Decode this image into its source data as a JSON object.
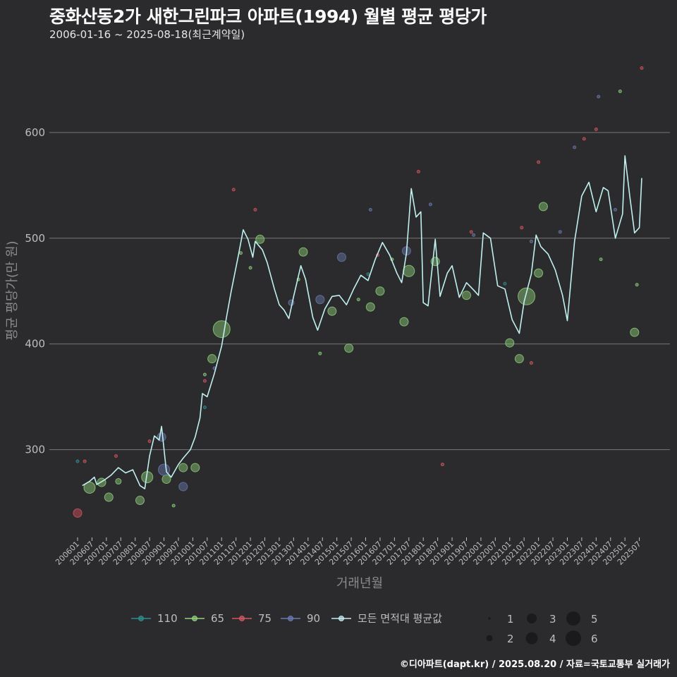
{
  "header": {
    "title": "중화산동2가 새한그린파크 아파트(1994) 월별 평균 평당가",
    "subtitle": "2006-01-16 ~ 2025-08-18(최근계약일)"
  },
  "caption": "©디아파트(dapt.kr) / 2025.08.20 / 자료=국토교통부 실거래가",
  "colors": {
    "background": "#2b2b2d",
    "grid": "#777777",
    "s110": "#2f8f8f",
    "s65": "#8fd27a",
    "s75": "#d8555f",
    "s90": "#6a7ab0",
    "avg": "#bff0f0"
  },
  "chart_data": {
    "type": "line",
    "title": "중화산동2가 새한그린파크 아파트(1994) 월별 평균 평당가",
    "subtitle": "2006-01-16 ~ 2025-08-18(최근계약일)",
    "xlabel": "거래년월",
    "ylabel": "평균 평당가(만 원)",
    "ylim": [
      217,
      672
    ],
    "yticks": [
      300,
      400,
      500,
      600
    ],
    "grid": true,
    "xticks": [
      "200601",
      "200607",
      "200701",
      "200707",
      "200801",
      "200807",
      "200901",
      "200907",
      "201001",
      "201007",
      "201101",
      "201107",
      "201201",
      "201207",
      "201301",
      "201307",
      "201401",
      "201407",
      "201501",
      "201507",
      "201601",
      "201607",
      "201701",
      "201707",
      "201801",
      "201807",
      "201901",
      "201907",
      "202001",
      "202007",
      "202101",
      "202107",
      "202201",
      "202207",
      "202301",
      "202307",
      "202401",
      "202407",
      "202501",
      "202507"
    ],
    "legend": {
      "position": "bottom",
      "series": [
        "110",
        "65",
        "75",
        "90",
        "모든 면적대 평균값"
      ],
      "size_title": "",
      "sizes": [
        1,
        2,
        3,
        4,
        5,
        6
      ]
    },
    "average_line": {
      "name": "모든 면적대 평균값",
      "points": [
        [
          "2006-03",
          266
        ],
        [
          "2006-06",
          270
        ],
        [
          "2006-08",
          274
        ],
        [
          "2006-09",
          267
        ],
        [
          "2006-12",
          271
        ],
        [
          "2007-03",
          276
        ],
        [
          "2007-06",
          283
        ],
        [
          "2007-09",
          278
        ],
        [
          "2007-12",
          281
        ],
        [
          "2008-03",
          266
        ],
        [
          "2008-05",
          263
        ],
        [
          "2008-07",
          294
        ],
        [
          "2008-09",
          313
        ],
        [
          "2008-11",
          309
        ],
        [
          "2008-12",
          322
        ],
        [
          "2009-02",
          279
        ],
        [
          "2009-04",
          274
        ],
        [
          "2009-07",
          286
        ],
        [
          "2009-09",
          292
        ],
        [
          "2009-12",
          300
        ],
        [
          "2010-02",
          312
        ],
        [
          "2010-04",
          330
        ],
        [
          "2010-05",
          353
        ],
        [
          "2010-07",
          350
        ],
        [
          "2010-10",
          372
        ],
        [
          "2011-01",
          398
        ],
        [
          "2011-03",
          425
        ],
        [
          "2011-05",
          450
        ],
        [
          "2011-08",
          484
        ],
        [
          "2011-10",
          508
        ],
        [
          "2011-12",
          499
        ],
        [
          "2012-02",
          482
        ],
        [
          "2012-03",
          497
        ],
        [
          "2012-06",
          489
        ],
        [
          "2012-08",
          477
        ],
        [
          "2012-11",
          452
        ],
        [
          "2013-01",
          437
        ],
        [
          "2013-03",
          432
        ],
        [
          "2013-05",
          424
        ],
        [
          "2013-07",
          445
        ],
        [
          "2013-10",
          474
        ],
        [
          "2013-12",
          461
        ],
        [
          "2014-03",
          425
        ],
        [
          "2014-05",
          413
        ],
        [
          "2014-08",
          433
        ],
        [
          "2014-11",
          445
        ],
        [
          "2015-02",
          446
        ],
        [
          "2015-05",
          437
        ],
        [
          "2015-08",
          452
        ],
        [
          "2015-11",
          465
        ],
        [
          "2016-02",
          460
        ],
        [
          "2016-05",
          480
        ],
        [
          "2016-08",
          496
        ],
        [
          "2016-11",
          484
        ],
        [
          "2017-02",
          467
        ],
        [
          "2017-04",
          458
        ],
        [
          "2017-06",
          486
        ],
        [
          "2017-08",
          547
        ],
        [
          "2017-10",
          520
        ],
        [
          "2017-12",
          525
        ],
        [
          "2018-01",
          439
        ],
        [
          "2018-03",
          436
        ],
        [
          "2018-06",
          499
        ],
        [
          "2018-08",
          445
        ],
        [
          "2018-11",
          467
        ],
        [
          "2019-01",
          474
        ],
        [
          "2019-04",
          444
        ],
        [
          "2019-07",
          458
        ],
        [
          "2019-10",
          451
        ],
        [
          "2019-12",
          446
        ],
        [
          "2020-02",
          505
        ],
        [
          "2020-05",
          500
        ],
        [
          "2020-08",
          455
        ],
        [
          "2020-11",
          452
        ],
        [
          "2021-02",
          423
        ],
        [
          "2021-05",
          410
        ],
        [
          "2021-07",
          440
        ],
        [
          "2021-10",
          466
        ],
        [
          "2021-12",
          503
        ],
        [
          "2022-02",
          492
        ],
        [
          "2022-05",
          485
        ],
        [
          "2022-08",
          470
        ],
        [
          "2022-11",
          446
        ],
        [
          "2023-01",
          422
        ],
        [
          "2023-04",
          497
        ],
        [
          "2023-07",
          540
        ],
        [
          "2023-10",
          553
        ],
        [
          "2024-01",
          525
        ],
        [
          "2024-04",
          548
        ],
        [
          "2024-06",
          545
        ],
        [
          "2024-09",
          500
        ],
        [
          "2024-12",
          523
        ],
        [
          "2025-01",
          578
        ],
        [
          "2025-03",
          540
        ],
        [
          "2025-05",
          505
        ],
        [
          "2025-07",
          510
        ],
        [
          "2025-08",
          557
        ]
      ]
    },
    "scatter_series": [
      {
        "name": "110",
        "points": [
          [
            "2006-01",
            289,
            1
          ],
          [
            "2010-06",
            340,
            1
          ],
          [
            "2016-02",
            466,
            1
          ],
          [
            "2020-11",
            457,
            1
          ]
        ]
      },
      {
        "name": "65",
        "points": [
          [
            "2006-06",
            264,
            4
          ],
          [
            "2006-11",
            269,
            3
          ],
          [
            "2007-02",
            255,
            3
          ],
          [
            "2007-06",
            270,
            2
          ],
          [
            "2008-03",
            252,
            3
          ],
          [
            "2008-06",
            274,
            4
          ],
          [
            "2009-02",
            272,
            3
          ],
          [
            "2009-05",
            247,
            1
          ],
          [
            "2009-09",
            283,
            3
          ],
          [
            "2010-02",
            283,
            3
          ],
          [
            "2010-06",
            371,
            1
          ],
          [
            "2010-09",
            386,
            3
          ],
          [
            "2011-01",
            414,
            6
          ],
          [
            "2011-09",
            486,
            1
          ],
          [
            "2012-01",
            472,
            1
          ],
          [
            "2012-05",
            499,
            3
          ],
          [
            "2013-09",
            461,
            1
          ],
          [
            "2013-11",
            487,
            3
          ],
          [
            "2014-06",
            391,
            1
          ],
          [
            "2014-11",
            431,
            3
          ],
          [
            "2015-06",
            396,
            3
          ],
          [
            "2015-10",
            442,
            1
          ],
          [
            "2016-03",
            435,
            3
          ],
          [
            "2016-07",
            450,
            3
          ],
          [
            "2016-12",
            480,
            1
          ],
          [
            "2017-05",
            421,
            3
          ],
          [
            "2017-07",
            469,
            4
          ],
          [
            "2018-06",
            478,
            3
          ],
          [
            "2019-07",
            446,
            3
          ],
          [
            "2021-01",
            401,
            3
          ],
          [
            "2021-05",
            386,
            3
          ],
          [
            "2021-08",
            445,
            6
          ],
          [
            "2022-03",
            530,
            3
          ],
          [
            "2022-01",
            467,
            3
          ],
          [
            "2024-03",
            480,
            1
          ],
          [
            "2024-11",
            639,
            1
          ],
          [
            "2025-05",
            411,
            3
          ],
          [
            "2025-06",
            456,
            1
          ]
        ]
      },
      {
        "name": "75",
        "points": [
          [
            "2006-01",
            240,
            3
          ],
          [
            "2006-04",
            289,
            1
          ],
          [
            "2007-05",
            294,
            1
          ],
          [
            "2008-07",
            308,
            1
          ],
          [
            "2010-06",
            365,
            1
          ],
          [
            "2011-06",
            546,
            1
          ],
          [
            "2012-03",
            527,
            1
          ],
          [
            "2016-06",
            484,
            1
          ],
          [
            "2017-11",
            563,
            1
          ],
          [
            "2018-09",
            286,
            1
          ],
          [
            "2019-09",
            506,
            1
          ],
          [
            "2021-06",
            510,
            1
          ],
          [
            "2021-10",
            382,
            1
          ],
          [
            "2022-01",
            572,
            1
          ],
          [
            "2023-08",
            594,
            1
          ],
          [
            "2024-01",
            603,
            1
          ],
          [
            "2025-08",
            661,
            1
          ]
        ]
      },
      {
        "name": "90",
        "points": [
          [
            "2008-12",
            312,
            3
          ],
          [
            "2009-01",
            281,
            4
          ],
          [
            "2009-09",
            265,
            3
          ],
          [
            "2010-10",
            377,
            1
          ],
          [
            "2013-06",
            439,
            2
          ],
          [
            "2014-06",
            442,
            3
          ],
          [
            "2015-03",
            482,
            3
          ],
          [
            "2016-03",
            527,
            1
          ],
          [
            "2017-06",
            488,
            3
          ],
          [
            "2018-04",
            532,
            1
          ],
          [
            "2019-10",
            503,
            1
          ],
          [
            "2021-10",
            497,
            1
          ],
          [
            "2022-10",
            506,
            1
          ],
          [
            "2023-04",
            586,
            1
          ],
          [
            "2024-02",
            634,
            1
          ],
          [
            "2024-09",
            527,
            1
          ]
        ]
      }
    ]
  }
}
